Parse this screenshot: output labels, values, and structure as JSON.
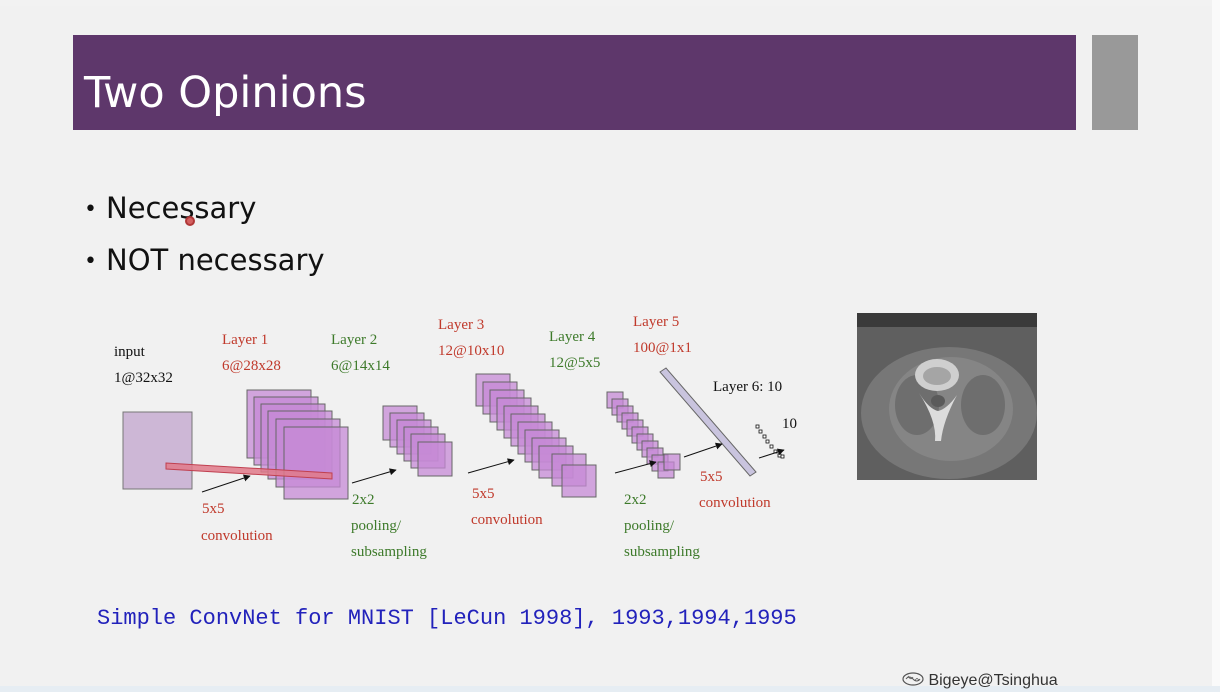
{
  "slide": {
    "title": "Two Opinions",
    "bullets": [
      "Necessary",
      "NOT necessary"
    ],
    "caption": "Simple ConvNet for MNIST [LeCun 1998], 1993,1994,1995",
    "watermark": "Bigeye@Tsinghua"
  },
  "diagram": {
    "input": {
      "name": "input",
      "dims": "1@32x32"
    },
    "layer1": {
      "name": "Layer 1",
      "dims": "6@28x28"
    },
    "layer2": {
      "name": "Layer 2",
      "dims": "6@14x14"
    },
    "layer3": {
      "name": "Layer 3",
      "dims": "12@10x10"
    },
    "layer4": {
      "name": "Layer 4",
      "dims": "12@5x5"
    },
    "layer5": {
      "name": "Layer 5",
      "dims": "100@1x1"
    },
    "layer6": {
      "name": "Layer 6: 10",
      "count": "10"
    },
    "ops": {
      "conv1": [
        "5x5",
        "convolution"
      ],
      "pool1": [
        "2x2",
        "pooling/",
        "subsampling"
      ],
      "conv2": [
        "5x5",
        "convolution"
      ],
      "pool2": [
        "2x2",
        "pooling/",
        "subsampling"
      ],
      "conv3": [
        "5x5",
        "convolution"
      ]
    }
  },
  "colors": {
    "title_bar": "#5e376b",
    "accent_block": "#999999",
    "layer_label_red": "#c0392b",
    "layer_label_green": "#3d7a2a",
    "caption_blue": "#2222bb",
    "feature_map_fill": "#c58ad6"
  },
  "icons": {
    "watermark": "brain-logo-icon",
    "cursor": "pointer-cursor-icon"
  }
}
